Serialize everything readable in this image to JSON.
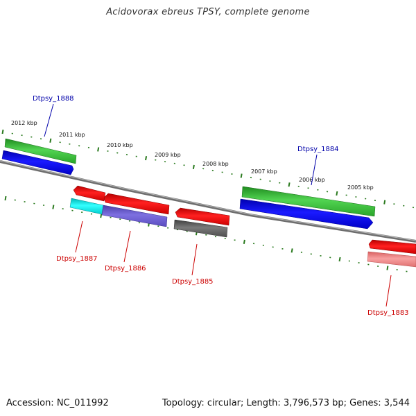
{
  "title": "Acidovorax ebreus TPSY, complete genome",
  "footer": {
    "accession": "Accession: NC_011992",
    "stats": "Topology: circular; Length: 3,796,573 bp; Genes: 3,544"
  },
  "scale_labels": [
    "2012 kbp",
    "2011 kbp",
    "2010 kbp",
    "2009 kbp",
    "2008 kbp",
    "2007 kbp",
    "2006 kbp",
    "2005 kbp"
  ],
  "genes": [
    {
      "name": "Dtpsy_1888",
      "strand": "forward",
      "color": "#0000aa"
    },
    {
      "name": "Dtpsy_1884",
      "strand": "forward",
      "color": "#0000aa"
    },
    {
      "name": "Dtpsy_1887",
      "strand": "reverse",
      "color": "#cc0000"
    },
    {
      "name": "Dtpsy_1886",
      "strand": "reverse",
      "color": "#cc0000"
    },
    {
      "name": "Dtpsy_1885",
      "strand": "reverse",
      "color": "#cc0000"
    },
    {
      "name": "Dtpsy_1883",
      "strand": "reverse",
      "color": "#cc0000"
    }
  ],
  "colors": {
    "backbone": "#808080",
    "tick": "#2a7a1e",
    "green": "#3cbf3c",
    "blue": "#0000e6",
    "red": "#e60000",
    "cyan": "#00e6e6",
    "purple": "#6a5acd",
    "gray": "#666666",
    "pink": "#f08080"
  }
}
